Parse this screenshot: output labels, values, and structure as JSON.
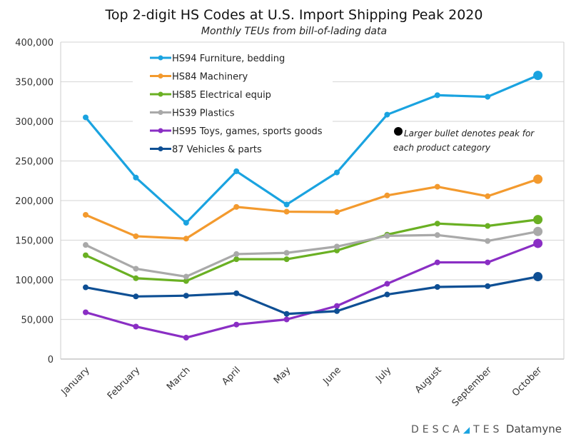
{
  "chart_data": {
    "type": "line",
    "title": "Top 2-digit HS Codes at U.S. Import Shipping Peak 2020",
    "subtitle": "Monthly TEUs from bill-of-lading data",
    "categories": [
      "January",
      "February",
      "March",
      "April",
      "May",
      "June",
      "July",
      "August",
      "September",
      "October"
    ],
    "ylim": [
      0,
      400000
    ],
    "yticks": [
      0,
      50000,
      100000,
      150000,
      200000,
      250000,
      300000,
      350000,
      400000
    ],
    "ytick_labels": [
      "0",
      "50,000",
      "100,000",
      "150,000",
      "200,000",
      "250,000",
      "300,000",
      "350,000",
      "400,000"
    ],
    "grid": true,
    "legend_position": "top-left",
    "annotation": [
      "Larger bullet denotes peak for",
      "each product category"
    ],
    "series": [
      {
        "name": "HS94 Furniture, bedding",
        "color": "#1aa3e0",
        "values": [
          305000,
          229000,
          172000,
          237000,
          195000,
          235500,
          308500,
          333000,
          331000,
          358000
        ]
      },
      {
        "name": "HS84 Machinery",
        "color": "#f39a2e",
        "values": [
          182000,
          155000,
          152000,
          192000,
          186000,
          185500,
          206500,
          217500,
          205500,
          227000
        ]
      },
      {
        "name": "HS85 Electrical equip",
        "color": "#6ab023",
        "values": [
          131000,
          102000,
          98500,
          126000,
          126000,
          137000,
          157000,
          171000,
          168000,
          176000
        ]
      },
      {
        "name": "HS39 Plastics",
        "color": "#a9a9a9",
        "values": [
          144000,
          114000,
          104000,
          132500,
          134000,
          142000,
          155500,
          156500,
          149000,
          161000
        ]
      },
      {
        "name": "HS95 Toys, games, sports goods",
        "color": "#8a2ec4",
        "values": [
          59000,
          41000,
          27000,
          43500,
          50000,
          67000,
          95000,
          122000,
          122000,
          146000
        ]
      },
      {
        "name": "87 Vehicles & parts",
        "color": "#0e4f94",
        "values": [
          90500,
          79000,
          80000,
          83000,
          57000,
          60500,
          81500,
          91000,
          92000,
          104000
        ]
      }
    ]
  },
  "logo": {
    "brand": "DESCARTES",
    "product": "Datamyne",
    "accent_color": "#1aa3e0"
  }
}
